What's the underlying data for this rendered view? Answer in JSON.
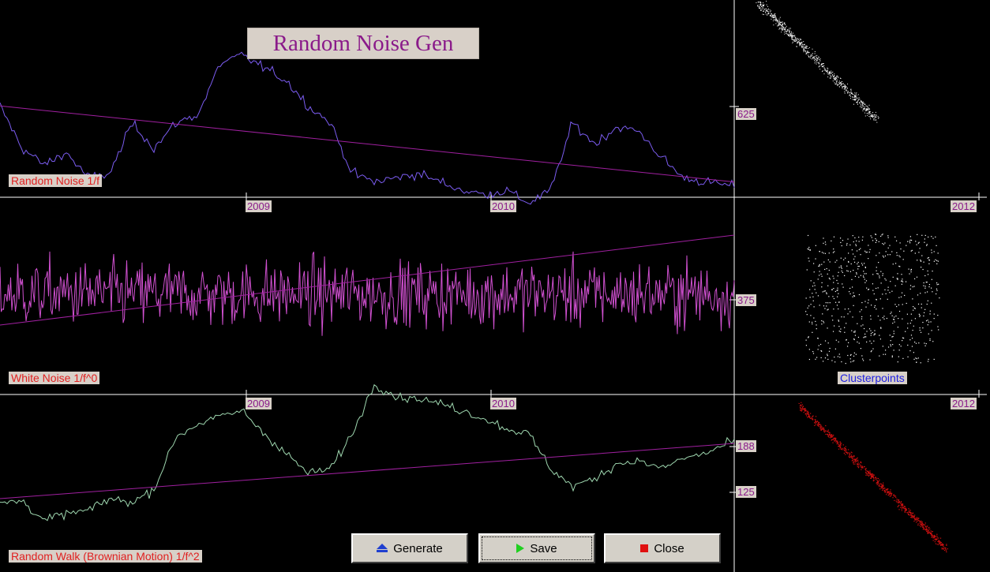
{
  "app": {
    "title": "Random Noise Gen"
  },
  "panels": {
    "pink": {
      "label": "Random Noise 1/f",
      "y_tick": "625"
    },
    "white": {
      "label": "White Noise 1/f^0",
      "y_tick": "375"
    },
    "brown": {
      "label": "Random Walk (Brownian Motion) 1/f^2",
      "y_ticks": [
        "188",
        "125"
      ]
    }
  },
  "x_ticks": [
    "2009",
    "2010",
    "2012"
  ],
  "cluster_label": "Clusterpoints",
  "buttons": {
    "generate": "Generate",
    "save": "Save",
    "close": "Close"
  },
  "colors": {
    "pink_line": "#7b5cf0",
    "white_line": "#d050d0",
    "brown_line": "#9fd8b0",
    "trend_line": "#a020a0",
    "axis": "#ffffff",
    "scatter_top": "#ffffff",
    "scatter_mid": "#ffffff",
    "scatter_bottom": "#d01010",
    "label_bg": "#d8d0c8",
    "label_text": "#e02020"
  },
  "chart_data": [
    {
      "type": "line",
      "title": "Random Noise 1/f",
      "x": [
        0,
        0.03,
        0.06,
        0.09,
        0.12,
        0.15,
        0.18,
        0.21,
        0.24,
        0.27,
        0.3,
        0.33,
        0.36,
        0.39,
        0.42,
        0.45,
        0.48,
        0.51,
        0.54,
        0.57,
        0.6,
        0.63,
        0.66,
        0.69,
        0.72,
        0.75,
        0.78,
        0.81,
        0.84,
        0.87,
        0.9,
        0.93,
        0.96,
        1.0
      ],
      "values": [
        660,
        610,
        590,
        605,
        575,
        580,
        640,
        610,
        640,
        650,
        710,
        720,
        705,
        690,
        660,
        640,
        580,
        570,
        575,
        580,
        570,
        560,
        555,
        560,
        545,
        560,
        640,
        615,
        635,
        630,
        600,
        575,
        570,
        565
      ],
      "trend": [
        660,
        570
      ],
      "ytick": "625",
      "xticks": [
        "2009",
        "2010",
        "2012"
      ]
    },
    {
      "type": "line",
      "title": "White Noise 1/f^0",
      "values_description_range": [
        280,
        470
      ],
      "trend": [
        345,
        415
      ],
      "ytick": "375",
      "xticks": [
        "2009",
        "2010",
        "2012"
      ]
    },
    {
      "type": "line",
      "title": "Random Walk (Brownian Motion) 1/f^2",
      "x": [
        0,
        0.03,
        0.06,
        0.09,
        0.12,
        0.15,
        0.18,
        0.21,
        0.24,
        0.27,
        0.3,
        0.33,
        0.36,
        0.39,
        0.42,
        0.45,
        0.48,
        0.51,
        0.54,
        0.57,
        0.6,
        0.63,
        0.66,
        0.69,
        0.72,
        0.75,
        0.78,
        0.81,
        0.84,
        0.87,
        0.9,
        0.93,
        0.96,
        1.0
      ],
      "values": [
        125,
        128,
        108,
        115,
        118,
        130,
        126,
        140,
        192,
        205,
        212,
        218,
        195,
        175,
        155,
        160,
        195,
        245,
        232,
        230,
        225,
        218,
        210,
        200,
        195,
        160,
        142,
        150,
        165,
        168,
        160,
        170,
        175,
        188
      ],
      "trend": [
        125,
        188
      ],
      "yticks": [
        "188",
        "125"
      ],
      "xticks": [
        "2009",
        "2010",
        "2012"
      ]
    }
  ]
}
